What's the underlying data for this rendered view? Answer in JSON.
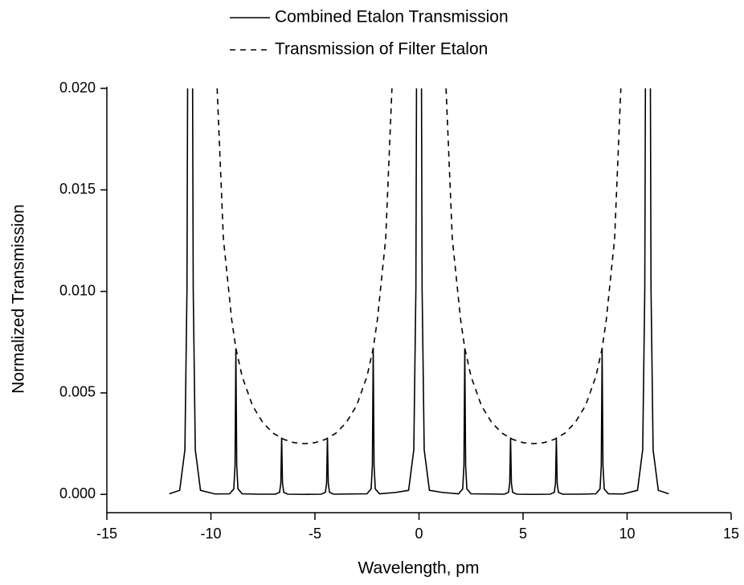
{
  "chart_data": {
    "type": "line",
    "xlabel": "Wavelength, pm",
    "ylabel": "Normalized Transmission",
    "xlim": [
      -15,
      15
    ],
    "ylim": [
      -0.0009,
      0.02
    ],
    "xticks": [
      -15,
      -10,
      -5,
      0,
      5,
      10,
      15
    ],
    "yticks": [
      {
        "value": 0,
        "label": "0.000"
      },
      {
        "value": 0.005,
        "label": "0.005"
      },
      {
        "value": 0.01,
        "label": "0.010"
      },
      {
        "value": 0.015,
        "label": "0.015"
      },
      {
        "value": 0.02,
        "label": "0.020"
      }
    ],
    "legend": "top",
    "series": [
      {
        "name": "Combined Etalon Transmission",
        "color": "#000000",
        "dash": "solid",
        "x": [
          -12,
          -11.5,
          -11.25,
          -11.15,
          -11.12,
          -11,
          -10.88,
          -10.85,
          -10.75,
          -10.5,
          -9.8,
          -9.1,
          -8.9,
          -8.84,
          -8.8,
          -8.76,
          -8.7,
          -8.5,
          -7.7,
          -6.9,
          -6.7,
          -6.64,
          -6.6,
          -6.56,
          -6.5,
          -6.3,
          -5.5,
          -4.7,
          -4.5,
          -4.44,
          -4.4,
          -4.36,
          -4.3,
          -4.1,
          -3.3,
          -2.5,
          -2.3,
          -2.24,
          -2.2,
          -2.16,
          -2.1,
          -1.9,
          -1.1,
          -0.5,
          -0.25,
          -0.15,
          -0.12,
          0,
          0.12,
          0.15,
          0.25,
          0.5,
          1.1,
          1.9,
          2.1,
          2.16,
          2.2,
          2.24,
          2.3,
          2.5,
          3.3,
          4.1,
          4.3,
          4.36,
          4.4,
          4.44,
          4.5,
          4.7,
          5.5,
          6.3,
          6.5,
          6.56,
          6.6,
          6.64,
          6.7,
          6.9,
          7.7,
          8.5,
          8.7,
          8.76,
          8.8,
          8.84,
          8.9,
          9.1,
          9.8,
          10.5,
          10.75,
          10.85,
          10.88,
          11,
          11.12,
          11.15,
          11.25,
          11.5,
          12
        ],
        "values": [
          3e-05,
          0.0002,
          0.0022,
          0.0101,
          0.02,
          null,
          0.02,
          0.0101,
          0.0022,
          0.0002,
          2e-05,
          3e-05,
          0.00027,
          0.00143,
          0.0072,
          0.00143,
          0.00027,
          3e-05,
          1e-05,
          1e-05,
          0.0001,
          0.00055,
          0.0028,
          0.00055,
          0.0001,
          1e-05,
          0,
          1e-05,
          0.0001,
          0.00055,
          0.0028,
          0.00055,
          0.0001,
          1e-05,
          2e-05,
          3e-05,
          0.00027,
          0.00143,
          0.0072,
          0.00143,
          0.00027,
          3e-05,
          0.0001,
          0.0002,
          0.0022,
          0.0101,
          0.02,
          null,
          0.02,
          0.0101,
          0.0022,
          0.0002,
          0.0001,
          3e-05,
          0.00027,
          0.00143,
          0.0072,
          0.00143,
          0.00027,
          3e-05,
          2e-05,
          1e-05,
          0.0001,
          0.00055,
          0.0028,
          0.00055,
          0.0001,
          1e-05,
          0,
          1e-05,
          0.0001,
          0.00055,
          0.0028,
          0.00055,
          0.0001,
          1e-05,
          1e-05,
          3e-05,
          0.00027,
          0.00143,
          0.0072,
          0.00143,
          0.00027,
          3e-05,
          2e-05,
          0.0002,
          0.0022,
          0.0101,
          0.02,
          null,
          0.02,
          0.0101,
          0.0022,
          0.0002,
          3e-05
        ]
      },
      {
        "name": "Transmission of Filter Etalon",
        "color": "#000000",
        "dash": "dashed",
        "x": [
          -9.7,
          -9.4,
          -9,
          -8.8,
          -8.5,
          -8,
          -7.5,
          -7,
          -6.5,
          -6,
          -5.5,
          -5,
          -4.5,
          -4,
          -3.5,
          -3,
          -2.5,
          -2.2,
          -2,
          -1.6,
          -1.3,
          0,
          1.3,
          1.6,
          2,
          2.2,
          2.5,
          3,
          3.5,
          4,
          4.5,
          5,
          5.5,
          6,
          6.5,
          7,
          7.5,
          8,
          8.5,
          8.8,
          9,
          9.4,
          9.7
        ],
        "values": [
          0.02,
          0.0126,
          0.0086,
          0.0072,
          0.00581,
          0.00437,
          0.00353,
          0.00301,
          0.00271,
          0.00255,
          0.0025,
          0.00255,
          0.00271,
          0.00301,
          0.00353,
          0.00437,
          0.00581,
          0.0072,
          0.0086,
          0.0126,
          0.02,
          null,
          0.02,
          0.0126,
          0.0086,
          0.0072,
          0.00581,
          0.00437,
          0.00353,
          0.00301,
          0.00271,
          0.00255,
          0.0025,
          0.00255,
          0.00271,
          0.00301,
          0.00353,
          0.00437,
          0.00581,
          0.0072,
          0.0086,
          0.0126,
          0.02
        ]
      }
    ]
  }
}
